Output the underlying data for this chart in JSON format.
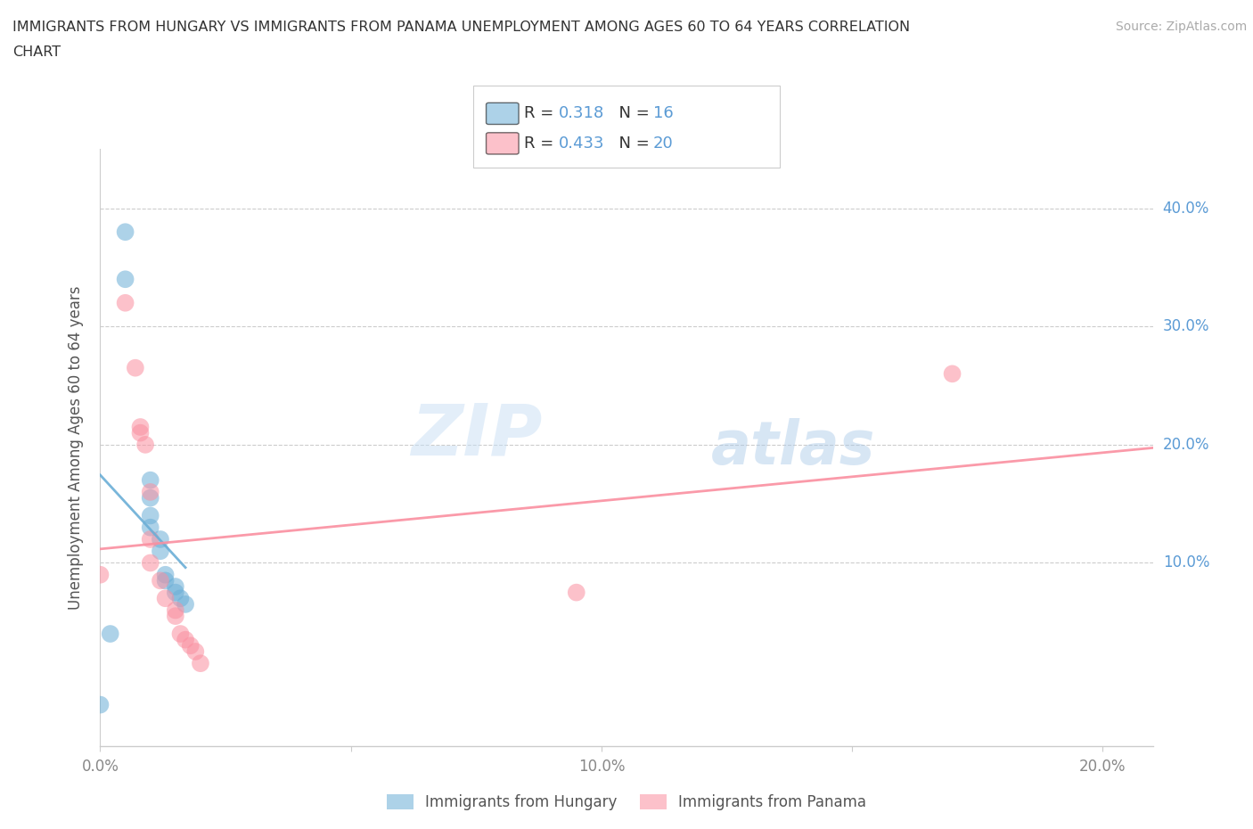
{
  "title_line1": "IMMIGRANTS FROM HUNGARY VS IMMIGRANTS FROM PANAMA UNEMPLOYMENT AMONG AGES 60 TO 64 YEARS CORRELATION",
  "title_line2": "CHART",
  "source": "Source: ZipAtlas.com",
  "ylabel": "Unemployment Among Ages 60 to 64 years",
  "hungary_color": "#6baed6",
  "panama_color": "#fa8fa0",
  "hungary_R": 0.318,
  "hungary_N": 16,
  "panama_R": 0.433,
  "panama_N": 20,
  "watermark_zip": "ZIP",
  "watermark_atlas": "atlas",
  "xlim": [
    0.0,
    0.21
  ],
  "ylim": [
    -0.055,
    0.45
  ],
  "x_ticks": [
    0.0,
    0.05,
    0.1,
    0.15,
    0.2
  ],
  "x_tick_labels": [
    "0.0%",
    "",
    "10.0%",
    "",
    "20.0%"
  ],
  "y_ticks": [
    0.1,
    0.2,
    0.3,
    0.4
  ],
  "y_tick_labels": [
    "10.0%",
    "20.0%",
    "30.0%",
    "40.0%"
  ],
  "tick_color": "#5b9bd5",
  "hungary_x": [
    0.005,
    0.005,
    0.01,
    0.01,
    0.01,
    0.01,
    0.012,
    0.012,
    0.013,
    0.013,
    0.015,
    0.015,
    0.016,
    0.017,
    0.002,
    0.0
  ],
  "hungary_y": [
    0.38,
    0.34,
    0.17,
    0.155,
    0.14,
    0.13,
    0.12,
    0.11,
    0.09,
    0.085,
    0.08,
    0.075,
    0.07,
    0.065,
    0.04,
    -0.02
  ],
  "panama_x": [
    0.005,
    0.007,
    0.008,
    0.008,
    0.009,
    0.01,
    0.01,
    0.01,
    0.012,
    0.013,
    0.015,
    0.015,
    0.016,
    0.017,
    0.018,
    0.019,
    0.02,
    0.095,
    0.17,
    0.0
  ],
  "panama_y": [
    0.32,
    0.265,
    0.215,
    0.21,
    0.2,
    0.16,
    0.12,
    0.1,
    0.085,
    0.07,
    0.06,
    0.055,
    0.04,
    0.035,
    0.03,
    0.025,
    0.015,
    0.075,
    0.26,
    0.09
  ],
  "legend_hungary": "Immigrants from Hungary",
  "legend_panama": "Immigrants from Panama"
}
